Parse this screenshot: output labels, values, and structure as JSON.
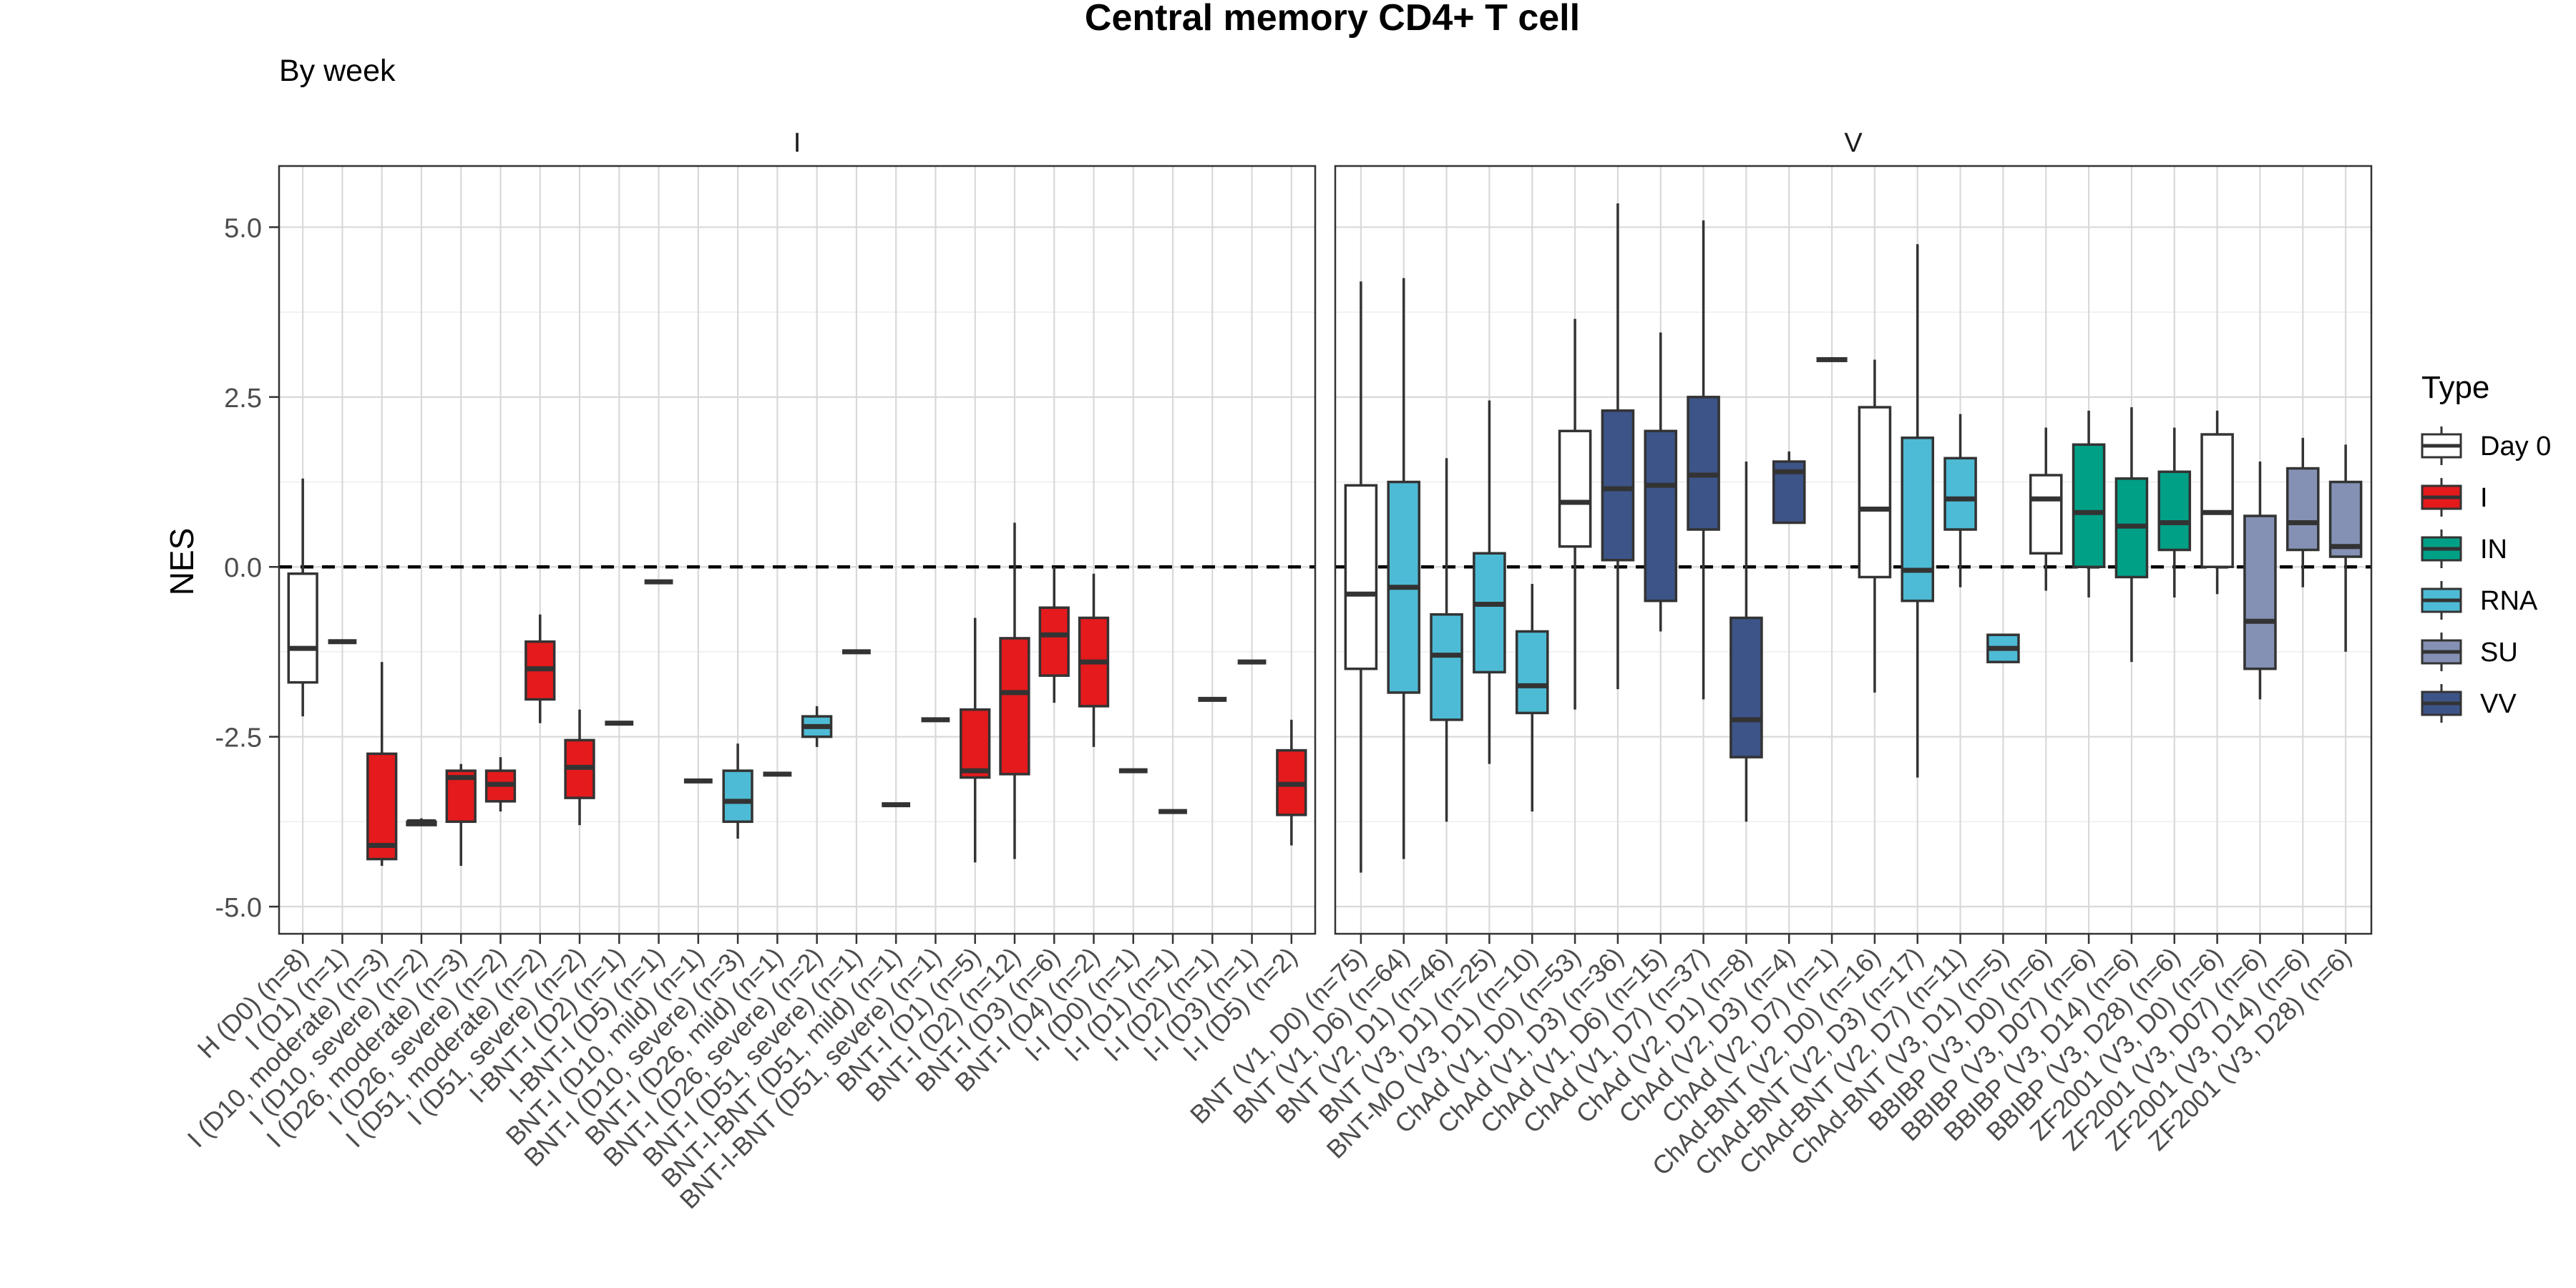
{
  "chart_data": {
    "type": "boxplot",
    "title": "Central memory CD4+ T cell",
    "subtitle": "By week",
    "ylabel": "NES",
    "xlabel": "",
    "ylim": [
      -5.4,
      5.9
    ],
    "yticks": [
      5.0,
      2.5,
      0.0,
      -2.5,
      -5.0
    ],
    "ytick_labels": [
      "5.0",
      "2.5",
      "0.0",
      "-2.5",
      "-5.0"
    ],
    "reference_line": 0.0,
    "grid": true,
    "legend": {
      "title": "Type",
      "position": "right",
      "entries": [
        {
          "label": "Day 0",
          "color": "#ffffff"
        },
        {
          "label": "I",
          "color": "#e41a1c"
        },
        {
          "label": "IN",
          "color": "#00a087"
        },
        {
          "label": "RNA",
          "color": "#4dbbd5"
        },
        {
          "label": "SU",
          "color": "#8491b4"
        },
        {
          "label": "VV",
          "color": "#3c5488"
        }
      ]
    },
    "panels": [
      {
        "label": "I",
        "categories": [
          "H (D0) (n=8)",
          "I (D1) (n=1)",
          "I (D10, moderate) (n=3)",
          "I (D10, severe) (n=2)",
          "I (D26, moderate) (n=3)",
          "I (D26, severe) (n=2)",
          "I (D51, moderate) (n=2)",
          "I (D51, severe) (n=2)",
          "I-BNT-I (D2) (n=1)",
          "I-BNT-I (D5) (n=1)",
          "BNT-I (D10, mild) (n=1)",
          "BNT-I (D10, severe) (n=3)",
          "BNT-I (D26, mild) (n=1)",
          "BNT-I (D26, severe) (n=2)",
          "BNT-I (D51, severe) (n=1)",
          "BNT-I-BNT (D51, mild) (n=1)",
          "BNT-I-BNT (D51, severe) (n=1)",
          "BNT-I (D1) (n=5)",
          "BNT-I (D2) (n=12)",
          "BNT-I (D3) (n=6)",
          "BNT-I (D4) (n=2)",
          "I-I (D0) (n=1)",
          "I-I (D1) (n=1)",
          "I-I (D2) (n=1)",
          "I-I (D3) (n=1)",
          "I-I (D5) (n=2)"
        ],
        "boxes": [
          {
            "type": "Day 0",
            "min": -2.2,
            "q1": -1.7,
            "median": -1.2,
            "q3": -0.1,
            "max": 1.3
          },
          {
            "type": "I",
            "min": -1.1,
            "q1": -1.1,
            "median": -1.1,
            "q3": -1.1,
            "max": -1.1
          },
          {
            "type": "I",
            "min": -4.4,
            "q1": -4.3,
            "median": -4.1,
            "q3": -2.75,
            "max": -1.4
          },
          {
            "type": "I",
            "min": -3.8,
            "q1": -3.8,
            "median": -3.75,
            "q3": -3.75,
            "max": -3.7
          },
          {
            "type": "I",
            "min": -4.4,
            "q1": -3.75,
            "median": -3.1,
            "q3": -3.0,
            "max": -2.9
          },
          {
            "type": "I",
            "min": -3.6,
            "q1": -3.45,
            "median": -3.2,
            "q3": -3.0,
            "max": -2.8
          },
          {
            "type": "I",
            "min": -2.3,
            "q1": -1.95,
            "median": -1.5,
            "q3": -1.1,
            "max": -0.7
          },
          {
            "type": "I",
            "min": -3.8,
            "q1": -3.4,
            "median": -2.95,
            "q3": -2.55,
            "max": -2.1
          },
          {
            "type": "I",
            "min": -2.3,
            "q1": -2.3,
            "median": -2.3,
            "q3": -2.3,
            "max": -2.3
          },
          {
            "type": "I",
            "min": -0.22,
            "q1": -0.22,
            "median": -0.22,
            "q3": -0.22,
            "max": -0.22
          },
          {
            "type": "RNA",
            "min": -3.15,
            "q1": -3.15,
            "median": -3.15,
            "q3": -3.15,
            "max": -3.15
          },
          {
            "type": "RNA",
            "min": -4.0,
            "q1": -3.75,
            "median": -3.45,
            "q3": -3.0,
            "max": -2.6
          },
          {
            "type": "RNA",
            "min": -3.05,
            "q1": -3.05,
            "median": -3.05,
            "q3": -3.05,
            "max": -3.05
          },
          {
            "type": "RNA",
            "min": -2.65,
            "q1": -2.5,
            "median": -2.35,
            "q3": -2.2,
            "max": -2.05
          },
          {
            "type": "RNA",
            "min": -1.25,
            "q1": -1.25,
            "median": -1.25,
            "q3": -1.25,
            "max": -1.25
          },
          {
            "type": "RNA",
            "min": -3.5,
            "q1": -3.5,
            "median": -3.5,
            "q3": -3.5,
            "max": -3.5
          },
          {
            "type": "RNA",
            "min": -2.25,
            "q1": -2.25,
            "median": -2.25,
            "q3": -2.25,
            "max": -2.25
          },
          {
            "type": "I",
            "min": -4.35,
            "q1": -3.1,
            "median": -3.0,
            "q3": -2.1,
            "max": -0.75
          },
          {
            "type": "I",
            "min": -4.3,
            "q1": -3.05,
            "median": -1.85,
            "q3": -1.05,
            "max": 0.65
          },
          {
            "type": "I",
            "min": -2.0,
            "q1": -1.6,
            "median": -1.0,
            "q3": -0.6,
            "max": 0.0
          },
          {
            "type": "I",
            "min": -2.65,
            "q1": -2.05,
            "median": -1.4,
            "q3": -0.75,
            "max": -0.1
          },
          {
            "type": "I",
            "min": -3.0,
            "q1": -3.0,
            "median": -3.0,
            "q3": -3.0,
            "max": -3.0
          },
          {
            "type": "I",
            "min": -3.6,
            "q1": -3.6,
            "median": -3.6,
            "q3": -3.6,
            "max": -3.6
          },
          {
            "type": "I",
            "min": -1.95,
            "q1": -1.95,
            "median": -1.95,
            "q3": -1.95,
            "max": -1.95
          },
          {
            "type": "I",
            "min": -1.4,
            "q1": -1.4,
            "median": -1.4,
            "q3": -1.4,
            "max": -1.4
          },
          {
            "type": "I",
            "min": -4.1,
            "q1": -3.65,
            "median": -3.2,
            "q3": -2.7,
            "max": -2.25
          }
        ]
      },
      {
        "label": "V",
        "categories": [
          "BNT (V1, D0) (n=75)",
          "BNT (V1, D6) (n=64)",
          "BNT (V2, D1) (n=46)",
          "BNT (V3, D1) (n=25)",
          "BNT-MO (V3, D1) (n=10)",
          "ChAd (V1, D0) (n=53)",
          "ChAd (V1, D3) (n=36)",
          "ChAd (V1, D6) (n=15)",
          "ChAd (V1, D7) (n=37)",
          "ChAd (V2, D1) (n=8)",
          "ChAd (V2, D3) (n=4)",
          "ChAd (V2, D7) (n=1)",
          "ChAd-BNT (V2, D0) (n=16)",
          "ChAd-BNT (V2, D3) (n=17)",
          "ChAd-BNT (V2, D7) (n=11)",
          "ChAd-BNT (V3, D1) (n=5)",
          "BBIBP (V3, D0) (n=6)",
          "BBIBP (V3, D07) (n=6)",
          "BBIBP (V3, D14) (n=6)",
          "BBIBP (V3, D28) (n=6)",
          "ZF2001 (V3, D0) (n=6)",
          "ZF2001 (V3, D07) (n=6)",
          "ZF2001 (V3, D14) (n=6)",
          "ZF2001 (V3, D28) (n=6)"
        ],
        "boxes": [
          {
            "type": "Day 0",
            "min": -4.5,
            "q1": -1.5,
            "median": -0.4,
            "q3": 1.2,
            "max": 4.2
          },
          {
            "type": "RNA",
            "min": -4.3,
            "q1": -1.85,
            "median": -0.3,
            "q3": 1.25,
            "max": 4.25
          },
          {
            "type": "RNA",
            "min": -3.75,
            "q1": -2.25,
            "median": -1.3,
            "q3": -0.7,
            "max": 1.6
          },
          {
            "type": "RNA",
            "min": -2.9,
            "q1": -1.55,
            "median": -0.55,
            "q3": 0.2,
            "max": 2.45
          },
          {
            "type": "RNA",
            "min": -3.6,
            "q1": -2.15,
            "median": -1.75,
            "q3": -0.95,
            "max": -0.25
          },
          {
            "type": "Day 0",
            "min": -2.1,
            "q1": 0.3,
            "median": 0.95,
            "q3": 2.0,
            "max": 3.65
          },
          {
            "type": "VV",
            "min": -1.8,
            "q1": 0.1,
            "median": 1.15,
            "q3": 2.3,
            "max": 5.35
          },
          {
            "type": "VV",
            "min": -0.95,
            "q1": -0.5,
            "median": 1.2,
            "q3": 2.0,
            "max": 3.45
          },
          {
            "type": "VV",
            "min": -1.95,
            "q1": 0.55,
            "median": 1.35,
            "q3": 2.5,
            "max": 5.1
          },
          {
            "type": "VV",
            "min": -3.75,
            "q1": -2.8,
            "median": -2.25,
            "q3": -0.75,
            "max": 1.55
          },
          {
            "type": "VV",
            "min": 0.65,
            "q1": 0.65,
            "median": 1.4,
            "q3": 1.55,
            "max": 1.7
          },
          {
            "type": "VV",
            "min": 3.05,
            "q1": 3.05,
            "median": 3.05,
            "q3": 3.05,
            "max": 3.05
          },
          {
            "type": "Day 0",
            "min": -1.85,
            "q1": -0.15,
            "median": 0.85,
            "q3": 2.35,
            "max": 3.05
          },
          {
            "type": "RNA",
            "min": -3.1,
            "q1": -0.5,
            "median": -0.05,
            "q3": 1.9,
            "max": 4.75
          },
          {
            "type": "RNA",
            "min": -0.3,
            "q1": 0.55,
            "median": 1.0,
            "q3": 1.6,
            "max": 2.25
          },
          {
            "type": "RNA",
            "min": -1.4,
            "q1": -1.4,
            "median": -1.2,
            "q3": -1.0,
            "max": -1.0
          },
          {
            "type": "Day 0",
            "min": -0.35,
            "q1": 0.2,
            "median": 1.0,
            "q3": 1.35,
            "max": 2.05
          },
          {
            "type": "IN",
            "min": -0.45,
            "q1": 0.0,
            "median": 0.8,
            "q3": 1.8,
            "max": 2.3
          },
          {
            "type": "IN",
            "min": -1.4,
            "q1": -0.15,
            "median": 0.6,
            "q3": 1.3,
            "max": 2.35
          },
          {
            "type": "IN",
            "min": -0.45,
            "q1": 0.25,
            "median": 0.65,
            "q3": 1.4,
            "max": 2.05
          },
          {
            "type": "Day 0",
            "min": -0.4,
            "q1": 0.0,
            "median": 0.8,
            "q3": 1.95,
            "max": 2.3
          },
          {
            "type": "SU",
            "min": -1.95,
            "q1": -1.5,
            "median": -0.8,
            "q3": 0.75,
            "max": 1.55
          },
          {
            "type": "SU",
            "min": -0.3,
            "q1": 0.25,
            "median": 0.65,
            "q3": 1.45,
            "max": 1.9
          },
          {
            "type": "SU",
            "min": -1.25,
            "q1": 0.15,
            "median": 0.3,
            "q3": 1.25,
            "max": 1.8
          }
        ]
      }
    ]
  }
}
